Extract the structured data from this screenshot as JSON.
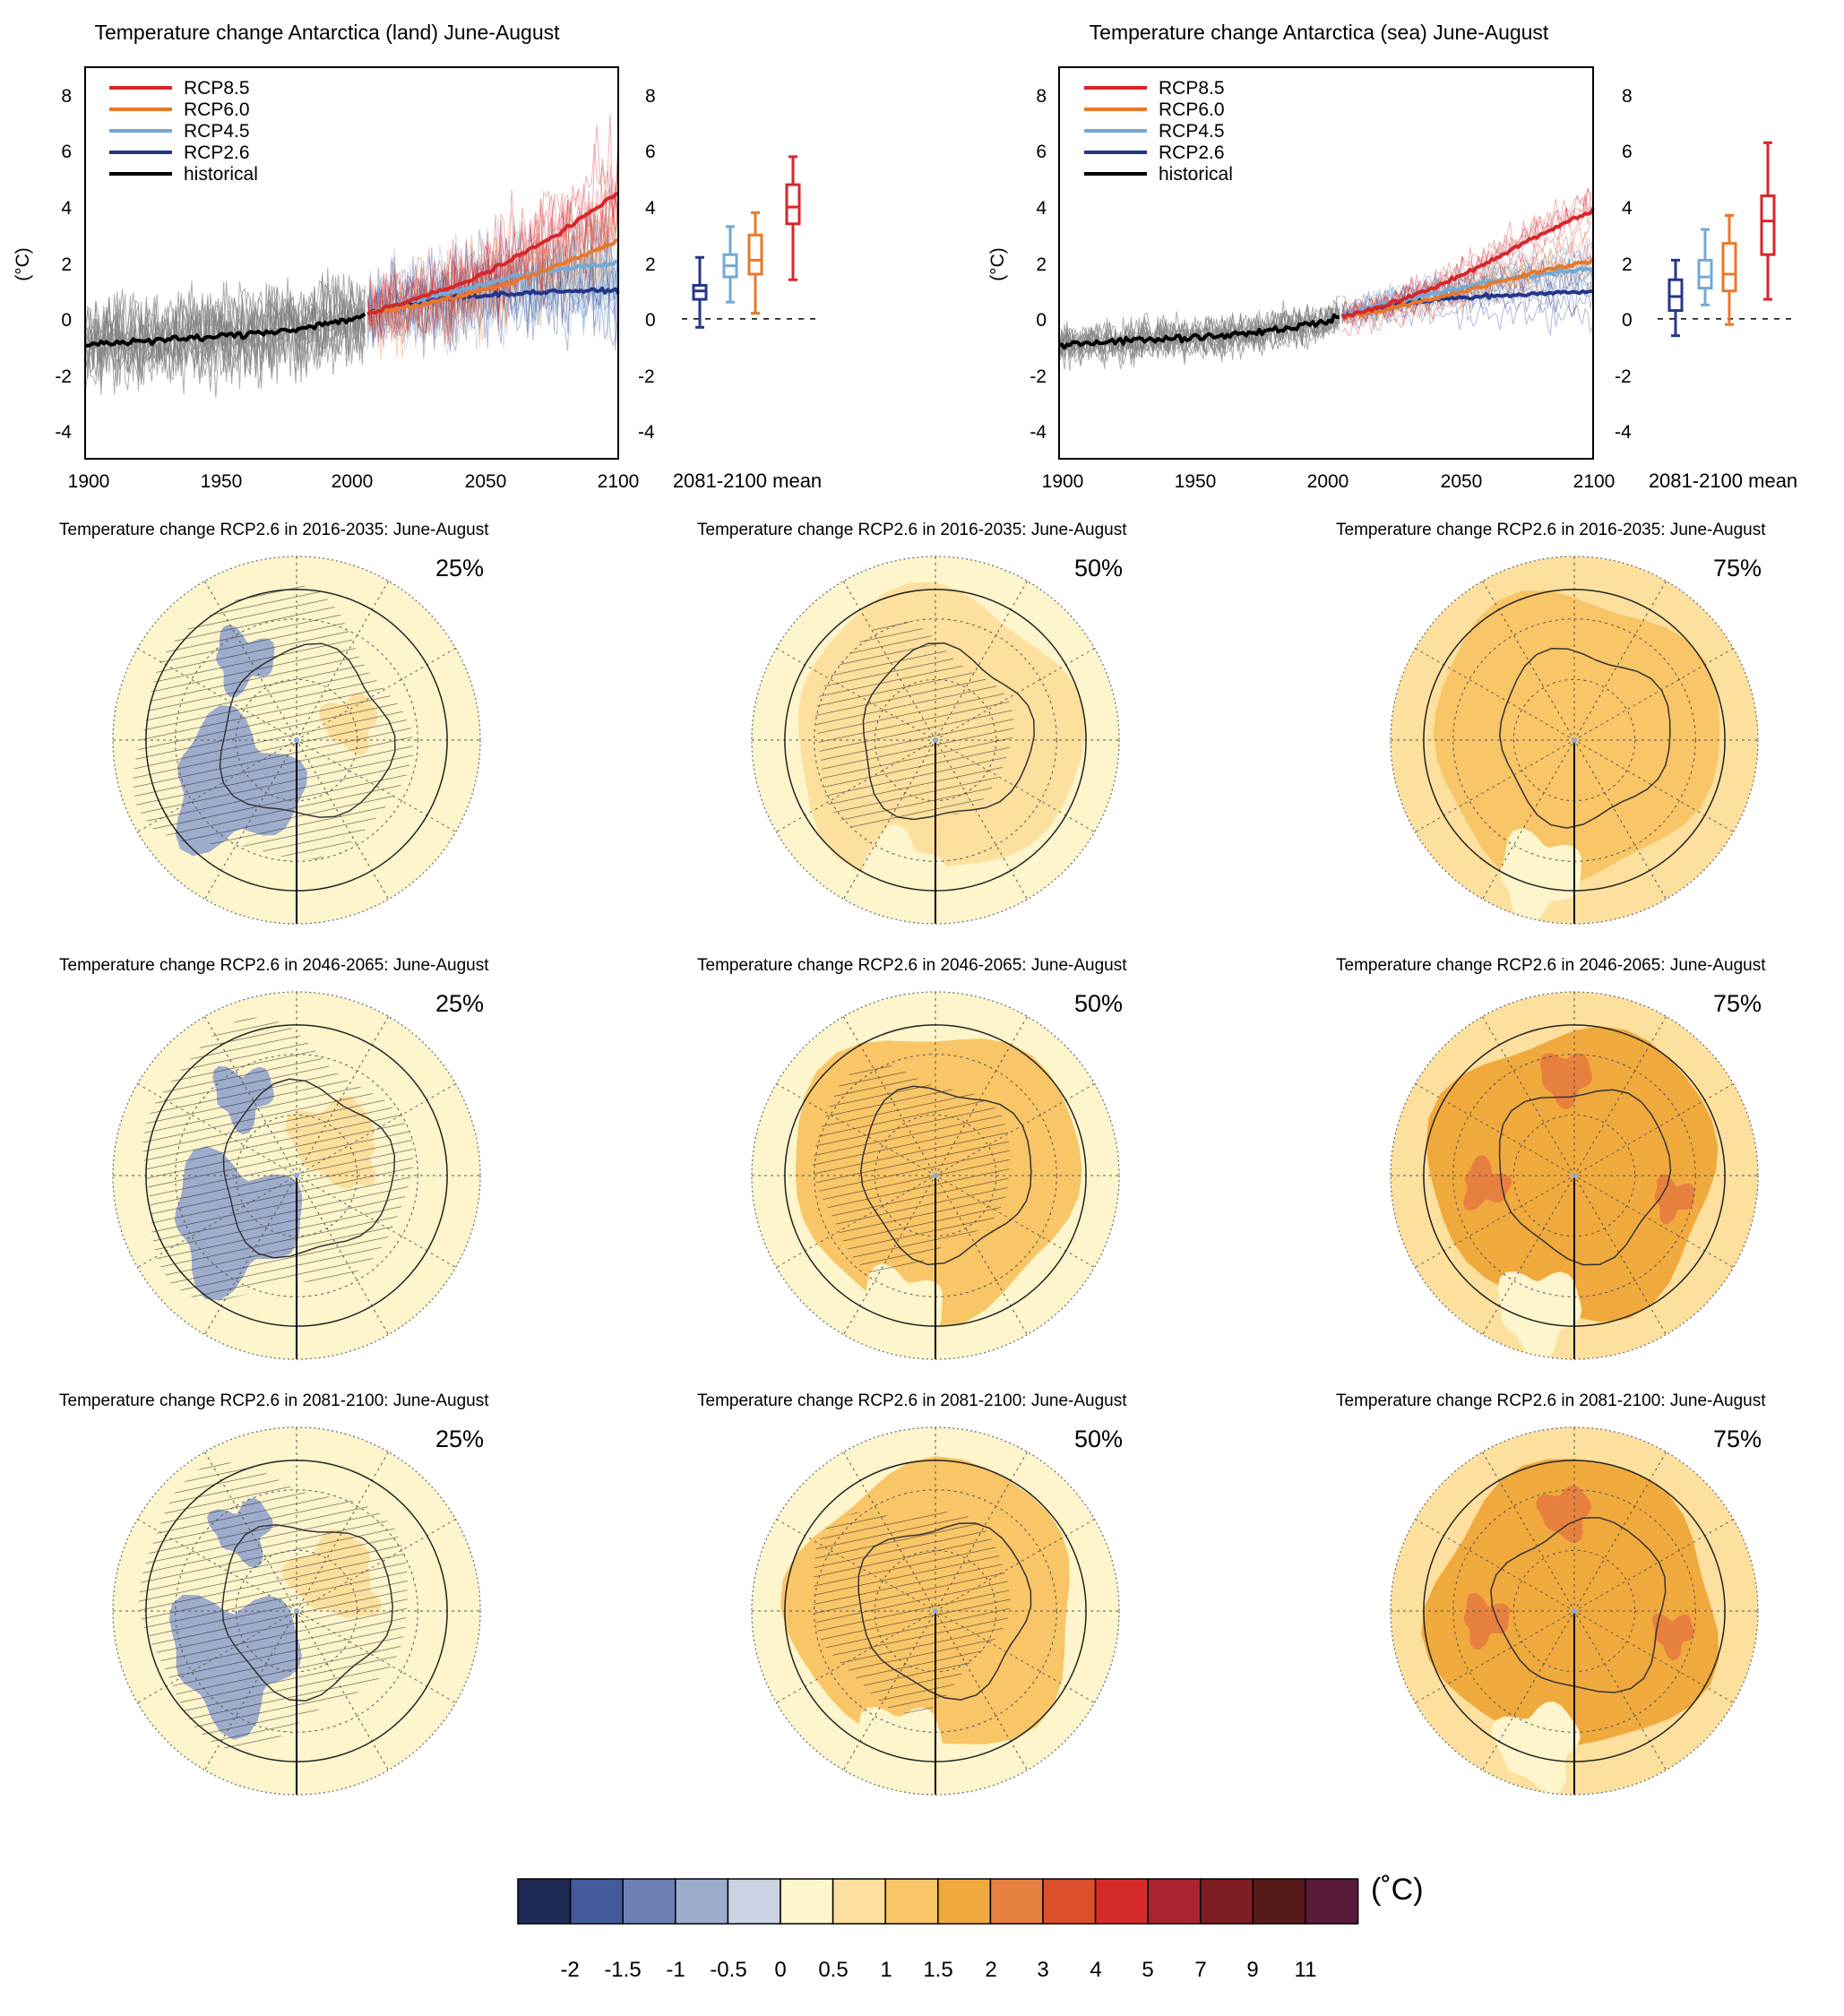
{
  "ts_panels": [
    {
      "title": "Temperature change Antarctica (land) June-August",
      "ylabel": "(°C)",
      "xticks": [
        "1900",
        "1950",
        "2000",
        "2050",
        "2100"
      ],
      "yticks": [
        "-4",
        "-2",
        "0",
        "2",
        "4",
        "6",
        "8"
      ],
      "box_label": "2081-2100 mean",
      "legend": [
        "RCP8.5",
        "RCP6.0",
        "RCP4.5",
        "RCP2.6",
        "historical"
      ]
    },
    {
      "title": "Temperature change Antarctica (sea) June-August",
      "ylabel": "(°C)",
      "xticks": [
        "1900",
        "1950",
        "2000",
        "2050",
        "2100"
      ],
      "yticks": [
        "-4",
        "-2",
        "0",
        "2",
        "4",
        "6",
        "8"
      ],
      "box_label": "2081-2100 mean",
      "legend": [
        "RCP8.5",
        "RCP6.0",
        "RCP4.5",
        "RCP2.6",
        "historical"
      ]
    }
  ],
  "colors": {
    "RCP8.5": "#d7262b",
    "RCP6.0": "#e8782a",
    "RCP4.5": "#74a9d4",
    "RCP2.6": "#24368c",
    "historical": "#000000",
    "ensemble_hist": "#7f7f7f"
  },
  "chart_data": [
    {
      "type": "line",
      "title": "Temperature change Antarctica (land) June-August",
      "xlabel": "",
      "ylabel": "(°C)",
      "xlim": [
        1900,
        2100
      ],
      "ylim": [
        -5,
        9
      ],
      "series": [
        {
          "name": "historical",
          "x": [
            1900,
            1920,
            1940,
            1960,
            1980,
            2000,
            2005
          ],
          "y": [
            -0.9,
            -0.8,
            -0.7,
            -0.55,
            -0.35,
            0.0,
            0.15
          ]
        },
        {
          "name": "RCP8.5",
          "x": [
            2006,
            2020,
            2040,
            2060,
            2080,
            2100
          ],
          "y": [
            0.2,
            0.6,
            1.2,
            2.1,
            3.2,
            4.5
          ]
        },
        {
          "name": "RCP6.0",
          "x": [
            2006,
            2020,
            2040,
            2060,
            2080,
            2100
          ],
          "y": [
            0.2,
            0.4,
            0.8,
            1.3,
            2.0,
            2.8
          ]
        },
        {
          "name": "RCP4.5",
          "x": [
            2006,
            2020,
            2040,
            2060,
            2080,
            2100
          ],
          "y": [
            0.2,
            0.6,
            1.0,
            1.5,
            1.8,
            2.0
          ]
        },
        {
          "name": "RCP2.6",
          "x": [
            2006,
            2020,
            2040,
            2060,
            2080,
            2100
          ],
          "y": [
            0.2,
            0.5,
            0.8,
            0.9,
            1.0,
            1.0
          ]
        }
      ],
      "boxes_2081_2100_mean": [
        {
          "name": "RCP2.6",
          "min": -0.3,
          "q1": 0.7,
          "median": 1.0,
          "q3": 1.2,
          "max": 2.2
        },
        {
          "name": "RCP4.5",
          "min": 0.6,
          "q1": 1.5,
          "median": 1.9,
          "q3": 2.3,
          "max": 3.3
        },
        {
          "name": "RCP6.0",
          "min": 0.2,
          "q1": 1.6,
          "median": 2.1,
          "q3": 3.0,
          "max": 3.8
        },
        {
          "name": "RCP8.5",
          "min": 1.4,
          "q1": 3.4,
          "median": 4.0,
          "q3": 4.8,
          "max": 5.8
        }
      ]
    },
    {
      "type": "line",
      "title": "Temperature change Antarctica (sea) June-August",
      "xlabel": "",
      "ylabel": "(°C)",
      "xlim": [
        1900,
        2100
      ],
      "ylim": [
        -5,
        9
      ],
      "series": [
        {
          "name": "historical",
          "x": [
            1900,
            1920,
            1940,
            1960,
            1980,
            2000,
            2005
          ],
          "y": [
            -0.9,
            -0.8,
            -0.7,
            -0.6,
            -0.4,
            -0.1,
            0.1
          ]
        },
        {
          "name": "RCP8.5",
          "x": [
            2006,
            2020,
            2040,
            2060,
            2080,
            2100
          ],
          "y": [
            0.1,
            0.4,
            1.1,
            2.0,
            3.0,
            3.9
          ]
        },
        {
          "name": "RCP6.0",
          "x": [
            2006,
            2020,
            2040,
            2060,
            2080,
            2100
          ],
          "y": [
            0.1,
            0.3,
            0.7,
            1.2,
            1.7,
            2.1
          ]
        },
        {
          "name": "RCP4.5",
          "x": [
            2006,
            2020,
            2040,
            2060,
            2080,
            2100
          ],
          "y": [
            0.1,
            0.5,
            0.9,
            1.3,
            1.6,
            1.8
          ]
        },
        {
          "name": "RCP2.6",
          "x": [
            2006,
            2020,
            2040,
            2060,
            2080,
            2100
          ],
          "y": [
            0.1,
            0.4,
            0.7,
            0.8,
            0.9,
            1.0
          ]
        }
      ],
      "boxes_2081_2100_mean": [
        {
          "name": "RCP2.6",
          "min": -0.6,
          "q1": 0.3,
          "median": 0.8,
          "q3": 1.4,
          "max": 2.1
        },
        {
          "name": "RCP4.5",
          "min": 0.5,
          "q1": 1.1,
          "median": 1.5,
          "q3": 2.1,
          "max": 3.2
        },
        {
          "name": "RCP6.0",
          "min": -0.2,
          "q1": 1.0,
          "median": 1.6,
          "q3": 2.7,
          "max": 3.7
        },
        {
          "name": "RCP8.5",
          "min": 0.7,
          "q1": 2.3,
          "median": 3.5,
          "q3": 4.4,
          "max": 6.3
        }
      ]
    }
  ],
  "maps": {
    "rows": [
      {
        "title": "Temperature change RCP2.6 in 2016-2035: June-August"
      },
      {
        "title": "Temperature change RCP2.6 in 2046-2065: June-August"
      },
      {
        "title": "Temperature change RCP2.6 in 2081-2100: June-August"
      }
    ],
    "percentiles": [
      "25%",
      "50%",
      "75%"
    ]
  },
  "colorbar": {
    "unit": "(˚C)",
    "labels": [
      "-2",
      "-1.5",
      "-1",
      "-0.5",
      "0",
      "0.5",
      "1",
      "1.5",
      "2",
      "3",
      "4",
      "5",
      "7",
      "9",
      "11"
    ],
    "colors": [
      "#1f2a55",
      "#435a9b",
      "#6d80b4",
      "#9eaccc",
      "#cbd3e2",
      "#fef5cc",
      "#fde09e",
      "#f8c567",
      "#f0a93d",
      "#e7803f",
      "#dd4f2c",
      "#d72b2b",
      "#ab2432",
      "#7e1d22",
      "#561a1a",
      "#5a1a3c"
    ]
  }
}
